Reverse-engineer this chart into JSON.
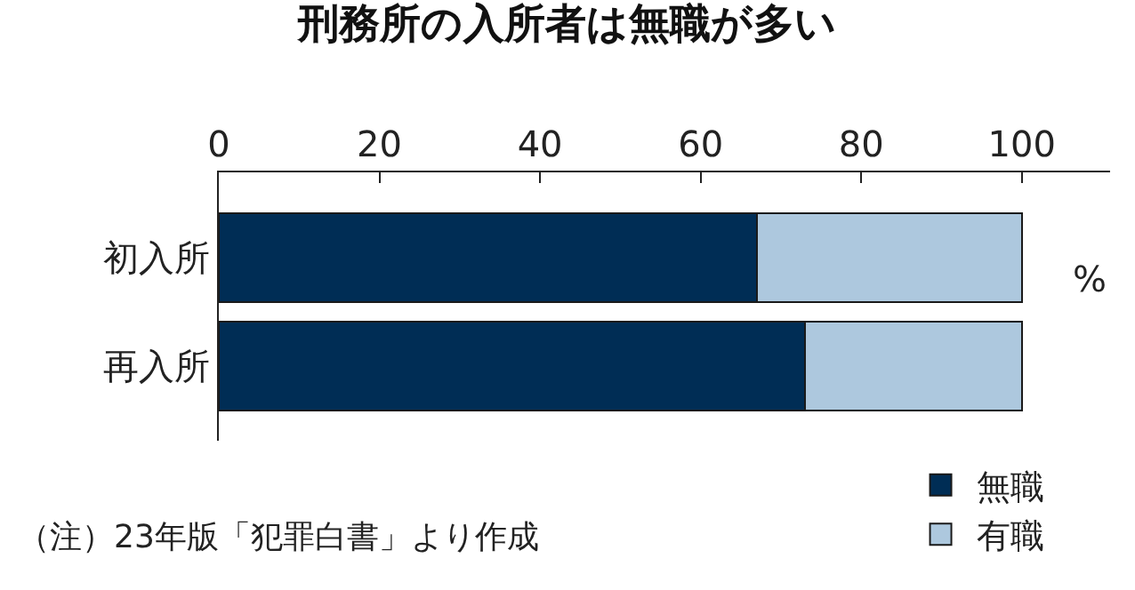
{
  "chart_data": {
    "type": "bar",
    "orientation": "horizontal",
    "stacked": true,
    "title": "刑務所の入所者は無職が多い",
    "categories": [
      "初入所",
      "再入所"
    ],
    "series": [
      {
        "name": "無職",
        "color": "#002d55",
        "values": [
          67,
          73
        ]
      },
      {
        "name": "有職",
        "color": "#adc8de",
        "values": [
          33,
          27
        ]
      }
    ],
    "xlim": [
      0,
      111
    ],
    "xticks": [
      0,
      20,
      40,
      60,
      80,
      100
    ],
    "grid": false,
    "legend": "bottom right",
    "annotations": [
      "%",
      "（注）23年版「犯罪白書」より作成"
    ]
  }
}
